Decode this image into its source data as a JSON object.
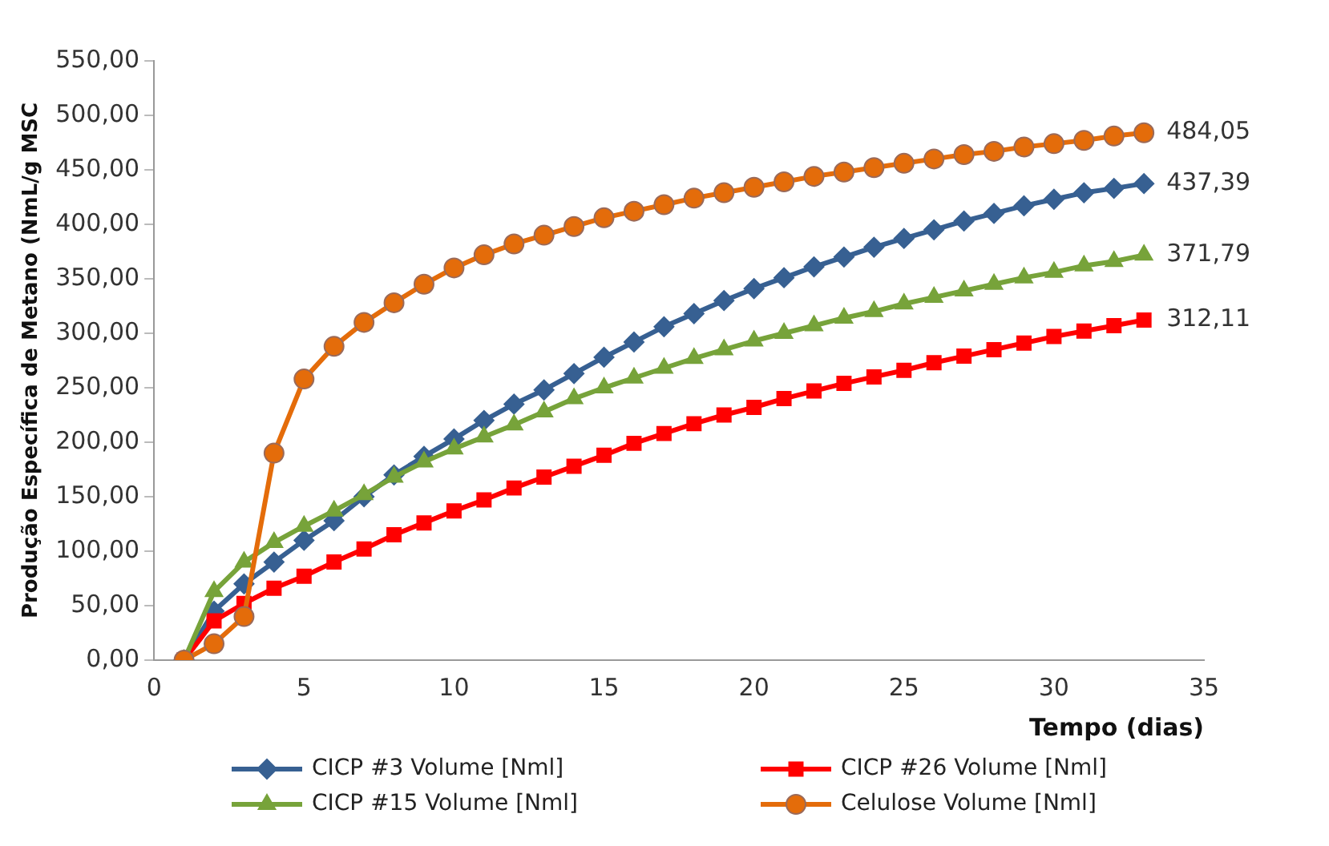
{
  "chart_data": {
    "type": "line",
    "ylabel": "Produção Específica de Metano (NmL/g MSC",
    "xlabel": "Tempo (dias)",
    "xlim": [
      0,
      35
    ],
    "xticks": [
      0,
      5,
      10,
      15,
      20,
      25,
      30,
      35
    ],
    "ylim": [
      0,
      550
    ],
    "yticks": [
      {
        "value": 0,
        "label": "0,00"
      },
      {
        "value": 50,
        "label": "50,00"
      },
      {
        "value": 100,
        "label": "100,00"
      },
      {
        "value": 150,
        "label": "150,00"
      },
      {
        "value": 200,
        "label": "200,00"
      },
      {
        "value": 250,
        "label": "250,00"
      },
      {
        "value": 300,
        "label": "300,00"
      },
      {
        "value": 350,
        "label": "350,00"
      },
      {
        "value": 400,
        "label": "400,00"
      },
      {
        "value": 450,
        "label": "450,00"
      },
      {
        "value": 500,
        "label": "500,00"
      },
      {
        "value": 550,
        "label": "550,00"
      }
    ],
    "x": [
      1,
      2,
      3,
      4,
      5,
      6,
      7,
      8,
      9,
      10,
      11,
      12,
      13,
      14,
      15,
      16,
      17,
      18,
      19,
      20,
      21,
      22,
      23,
      24,
      25,
      26,
      27,
      28,
      29,
      30,
      31,
      32,
      33
    ],
    "grid": false,
    "legend": "bottom",
    "line_style": "solid",
    "series": [
      {
        "name": "CICP #3 Volume [Nml]",
        "color": "#376092",
        "marker": "diamond",
        "values": [
          0,
          45,
          70,
          90,
          110,
          128,
          150,
          170,
          187,
          203,
          220,
          235,
          248,
          263,
          278,
          292,
          306,
          318,
          330,
          341,
          351,
          361,
          370,
          379,
          387,
          395,
          403,
          410,
          417,
          423,
          429,
          433,
          437.39
        ],
        "value_labels": [
          null,
          null,
          null,
          null,
          null,
          null,
          null,
          null,
          null,
          null,
          null,
          null,
          null,
          null,
          null,
          null,
          null,
          null,
          null,
          null,
          null,
          null,
          null,
          null,
          null,
          null,
          null,
          null,
          null,
          null,
          null,
          null,
          "437,39"
        ]
      },
      {
        "name": "CICP #26 Volume [Nml]",
        "color": "#ff0000",
        "marker": "square",
        "values": [
          0,
          36,
          52,
          66,
          77,
          90,
          102,
          115,
          126,
          137,
          147,
          158,
          168,
          178,
          188,
          199,
          208,
          217,
          225,
          232,
          240,
          247,
          254,
          260,
          266,
          273,
          279,
          285,
          291,
          297,
          302,
          307,
          312.11
        ],
        "value_labels": [
          null,
          null,
          null,
          null,
          null,
          null,
          null,
          null,
          null,
          null,
          null,
          null,
          null,
          null,
          null,
          null,
          null,
          null,
          null,
          null,
          null,
          null,
          null,
          null,
          null,
          null,
          null,
          null,
          null,
          null,
          null,
          null,
          "312,11"
        ]
      },
      {
        "name": "CICP #15 Volume [Nml]",
        "color": "#77a33a",
        "marker": "triangle",
        "values": [
          0,
          63,
          90,
          108,
          123,
          137,
          152,
          168,
          182,
          194,
          205,
          216,
          228,
          240,
          250,
          259,
          268,
          277,
          285,
          293,
          300,
          307,
          314,
          320,
          327,
          333,
          339,
          345,
          351,
          356,
          362,
          366,
          371.79
        ],
        "value_labels": [
          null,
          null,
          null,
          null,
          null,
          null,
          null,
          null,
          null,
          null,
          null,
          null,
          null,
          null,
          null,
          null,
          null,
          null,
          null,
          null,
          null,
          null,
          null,
          null,
          null,
          null,
          null,
          null,
          null,
          null,
          null,
          null,
          "371,79"
        ]
      },
      {
        "name": "Celulose Volume [Nml]",
        "color": "#e46c0a",
        "marker": "circle",
        "values": [
          0,
          15,
          40,
          190,
          258,
          288,
          310,
          328,
          345,
          360,
          372,
          382,
          390,
          398,
          406,
          412,
          418,
          424,
          429,
          434,
          439,
          444,
          448,
          452,
          456,
          460,
          464,
          467,
          471,
          474,
          477,
          481,
          484.05
        ],
        "value_labels": [
          null,
          null,
          null,
          null,
          null,
          null,
          null,
          null,
          null,
          null,
          null,
          null,
          null,
          null,
          null,
          null,
          null,
          null,
          null,
          null,
          null,
          null,
          null,
          null,
          null,
          null,
          null,
          null,
          null,
          null,
          null,
          null,
          "484,05"
        ]
      }
    ]
  }
}
